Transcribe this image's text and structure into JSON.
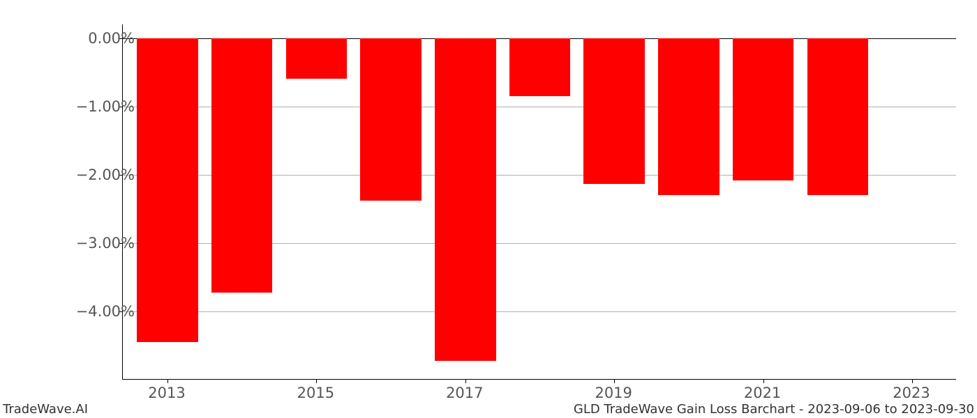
{
  "chart": {
    "type": "bar",
    "years": [
      2013,
      2014,
      2015,
      2016,
      2017,
      2018,
      2019,
      2020,
      2021,
      2022
    ],
    "values": [
      -4.45,
      -3.73,
      -0.6,
      -2.38,
      -4.72,
      -0.85,
      -2.14,
      -2.3,
      -2.08,
      -2.3
    ],
    "bar_color": "#ff0000",
    "background_color": "#ffffff",
    "grid_color": "#b0b0b0",
    "axis_color": "#000000",
    "tick_label_color": "#555555",
    "x_domain_min": 2012.4,
    "x_domain_max": 2023.6,
    "x_tick_values": [
      2013,
      2015,
      2017,
      2019,
      2021,
      2023
    ],
    "x_tick_labels": [
      "2013",
      "2015",
      "2017",
      "2019",
      "2021",
      "2023"
    ],
    "y_min": -5.0,
    "y_max": 0.2,
    "y_tick_values": [
      0,
      -1,
      -2,
      -3,
      -4
    ],
    "y_tick_labels": [
      "0.00%",
      "−1.00%",
      "−2.00%",
      "−3.00%",
      "−4.00%"
    ],
    "bar_width_years": 0.82,
    "tick_fontsize_pt": 16,
    "footer_fontsize_pt": 13.5
  },
  "footer": {
    "left": "TradeWave.AI",
    "right": "GLD TradeWave Gain Loss Barchart - 2023-09-06 to 2023-09-30"
  }
}
